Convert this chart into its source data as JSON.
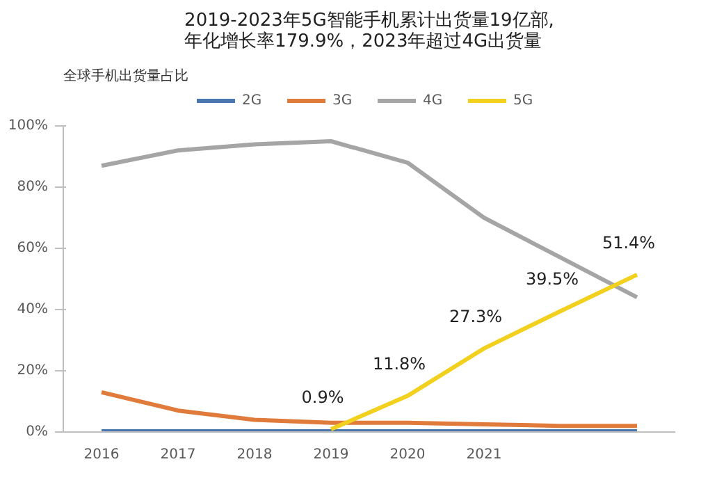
{
  "chart_data": {
    "type": "line",
    "title": "2019-2023年5G智能手机累计出货量19亿部,\n年化增长率179.9%，2023年超过4G出货量",
    "ylabel": "全球手机出货量占比",
    "categories": [
      "2016",
      "2017",
      "2018",
      "2019",
      "2020",
      "2021",
      null,
      null
    ],
    "series": [
      {
        "name": "2G",
        "color": "#4a76b0",
        "values": [
          0.2,
          0.2,
          0.2,
          0.2,
          0.2,
          0.2,
          0.2,
          0.2
        ]
      },
      {
        "name": "3G",
        "color": "#e07b3c",
        "values": [
          13,
          7,
          4,
          3,
          3,
          2.5,
          2,
          2
        ]
      },
      {
        "name": "4G",
        "color": "#a5a5a5",
        "values": [
          87,
          92,
          94,
          95,
          88,
          70,
          57,
          44
        ]
      },
      {
        "name": "5G",
        "color": "#f2d01e",
        "values": [
          null,
          null,
          null,
          0.9,
          11.8,
          27.3,
          39.5,
          51.4
        ],
        "value_labels": [
          null,
          null,
          null,
          "0.9%",
          "11.8%",
          "27.3%",
          "39.5%",
          "51.4%"
        ]
      }
    ],
    "ylim": [
      0,
      100
    ],
    "yticks": [
      {
        "value": 0,
        "label": "0%"
      },
      {
        "value": 20,
        "label": "20%"
      },
      {
        "value": 40,
        "label": "40%"
      },
      {
        "value": 60,
        "label": "60%"
      },
      {
        "value": 80,
        "label": "80%"
      },
      {
        "value": 100,
        "label": "100%"
      }
    ],
    "legend": "top",
    "grid": false,
    "marker": "none",
    "line_style": "solid"
  }
}
